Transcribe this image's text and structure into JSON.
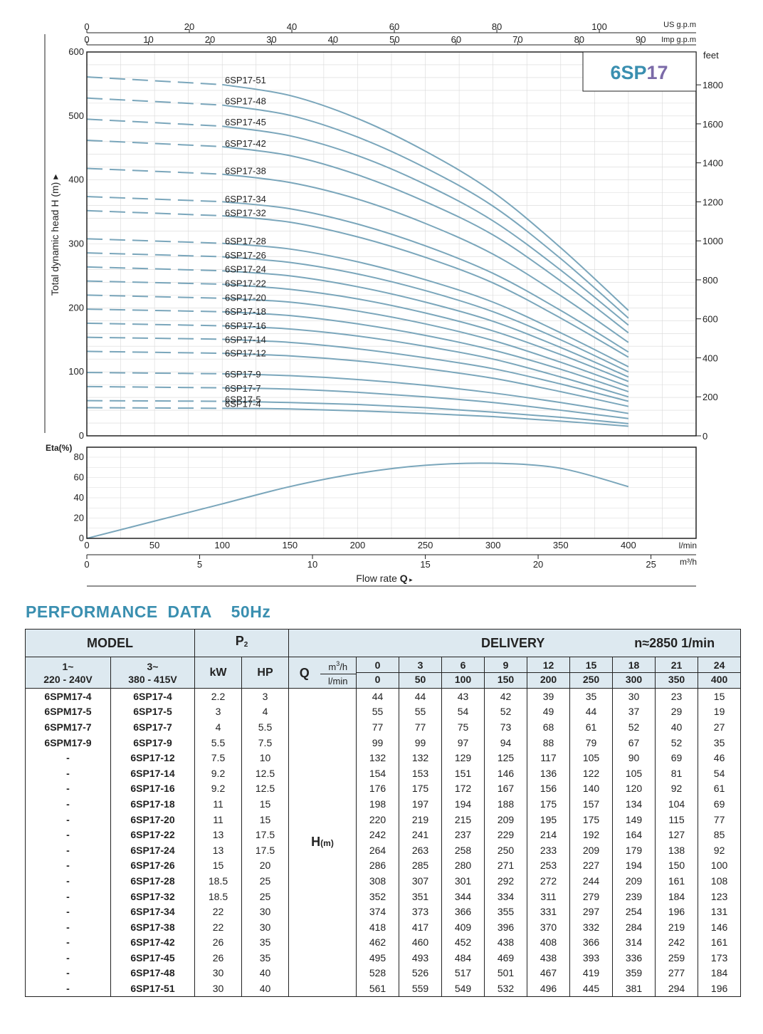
{
  "chart_data": [
    {
      "type": "line",
      "title": "6SP17",
      "ylabel": "Total dynamic head H (m)",
      "ylim": [
        0,
        600
      ],
      "yticks": [
        0,
        100,
        200,
        300,
        400,
        500,
        600
      ],
      "right_axis": {
        "label": "feet",
        "ticks": [
          0,
          200,
          400,
          600,
          800,
          1000,
          1200,
          1400,
          1600,
          1800
        ]
      },
      "top_axes": [
        {
          "label": "US g.p.m",
          "ticks": [
            0,
            20,
            40,
            60,
            80,
            100
          ]
        },
        {
          "label": "Imp g.p.m",
          "ticks": [
            0,
            10,
            20,
            30,
            40,
            50,
            60,
            70,
            80,
            90
          ]
        }
      ],
      "x": [
        0,
        50,
        100,
        150,
        200,
        250,
        300,
        350,
        400
      ],
      "xlim": [
        0,
        450
      ],
      "shutoff_dashed": true,
      "grid": true,
      "series": [
        {
          "name": "6SP17-51",
          "values": [
            561,
            559,
            549,
            532,
            496,
            445,
            381,
            294,
            196
          ]
        },
        {
          "name": "6SP17-48",
          "values": [
            528,
            526,
            517,
            501,
            467,
            419,
            359,
            277,
            184
          ]
        },
        {
          "name": "6SP17-45",
          "values": [
            495,
            493,
            484,
            469,
            438,
            393,
            336,
            259,
            173
          ]
        },
        {
          "name": "6SP17-42",
          "values": [
            462,
            460,
            452,
            438,
            408,
            366,
            314,
            242,
            161
          ]
        },
        {
          "name": "6SP17-38",
          "values": [
            418,
            417,
            409,
            396,
            370,
            332,
            284,
            219,
            146
          ]
        },
        {
          "name": "6SP17-34",
          "values": [
            374,
            373,
            366,
            355,
            331,
            297,
            254,
            196,
            131
          ]
        },
        {
          "name": "6SP17-32",
          "values": [
            352,
            351,
            344,
            334,
            311,
            279,
            239,
            184,
            123
          ]
        },
        {
          "name": "6SP17-28",
          "values": [
            308,
            307,
            301,
            292,
            272,
            244,
            209,
            161,
            108
          ]
        },
        {
          "name": "6SP17-26",
          "values": [
            286,
            285,
            280,
            271,
            253,
            227,
            194,
            150,
            100
          ]
        },
        {
          "name": "6SP17-24",
          "values": [
            264,
            263,
            258,
            250,
            233,
            209,
            179,
            138,
            92
          ]
        },
        {
          "name": "6SP17-22",
          "values": [
            242,
            241,
            237,
            229,
            214,
            192,
            164,
            127,
            85
          ]
        },
        {
          "name": "6SP17-20",
          "values": [
            220,
            219,
            215,
            209,
            195,
            175,
            149,
            115,
            77
          ]
        },
        {
          "name": "6SP17-18",
          "values": [
            198,
            197,
            194,
            188,
            175,
            157,
            134,
            104,
            69
          ]
        },
        {
          "name": "6SP17-16",
          "values": [
            176,
            175,
            172,
            167,
            156,
            140,
            120,
            92,
            61
          ]
        },
        {
          "name": "6SP17-14",
          "values": [
            154,
            153,
            151,
            146,
            136,
            122,
            105,
            81,
            54
          ]
        },
        {
          "name": "6SP17-12",
          "values": [
            132,
            132,
            129,
            125,
            117,
            105,
            90,
            69,
            46
          ]
        },
        {
          "name": "6SP17-9",
          "values": [
            99,
            99,
            97,
            94,
            88,
            79,
            67,
            52,
            35
          ]
        },
        {
          "name": "6SP17-7",
          "values": [
            77,
            77,
            75,
            73,
            68,
            61,
            52,
            40,
            27
          ]
        },
        {
          "name": "6SP17-5",
          "values": [
            55,
            55,
            54,
            52,
            49,
            44,
            37,
            29,
            19
          ]
        },
        {
          "name": "6SP17-4",
          "values": [
            44,
            44,
            43,
            42,
            39,
            35,
            30,
            23,
            15
          ]
        }
      ]
    },
    {
      "type": "line",
      "ylabel": "Eta(%)",
      "ylim": [
        0,
        80
      ],
      "yticks": [
        0,
        20,
        40,
        60,
        80
      ],
      "xlabel": "Flow rate Q",
      "xlim": [
        0,
        450
      ],
      "xticks_lmin": [
        0,
        50,
        100,
        150,
        200,
        250,
        300,
        350,
        400
      ],
      "xunit_lmin": "l/min",
      "xticks_m3h": [
        0,
        5,
        10,
        15,
        20,
        25
      ],
      "xunit_m3h": "m³/h",
      "series": [
        {
          "x": [
            0,
            50,
            100,
            150,
            200,
            250,
            300,
            350,
            400
          ],
          "values": [
            0,
            17,
            34,
            51,
            64,
            72,
            74,
            69,
            51
          ]
        }
      ]
    }
  ],
  "labels": {
    "main_title": "6SP17",
    "y_axis_label": "Total dynamic head H (m)",
    "y_axis_arrow": "▸",
    "feet_unit": "feet",
    "us_gpm_unit": "US g.p.m",
    "imp_gpm_unit": "Imp g.p.m",
    "eta_label": "Eta(%)",
    "lmin_unit": "l/min",
    "m3h_unit": "m³/h",
    "flow_rate_label": "Flow rate",
    "flow_rate_symbol": "Q",
    "flow_rate_arrow": "▸"
  },
  "section_title": "PERFORMANCE  DATA    50Hz",
  "table": {
    "model_header": "MODEL",
    "p2_header": "P",
    "p2_sub": "2",
    "delivery_header": "DELIVERY",
    "speed_header": "n≈2850 1/min",
    "single_phase": "1~",
    "single_phase_voltage": "220 - 240V",
    "three_phase": "3~",
    "three_phase_voltage": "380 - 415V",
    "kw_header": "kW",
    "hp_header": "HP",
    "q_symbol": "Q",
    "q_unit_m3h_base": "m",
    "q_unit_m3h_sup": "3",
    "q_unit_m3h_tail": "/h",
    "q_unit_lmin": "l/min",
    "h_label": "H",
    "h_unit": "(m)",
    "q_m3h": [
      "0",
      "3",
      "6",
      "9",
      "12",
      "15",
      "18",
      "21",
      "24"
    ],
    "q_lmin": [
      "0",
      "50",
      "100",
      "150",
      "200",
      "250",
      "300",
      "350",
      "400"
    ],
    "rows": [
      {
        "m1": "6SPM17-4",
        "m3": "6SP17-4",
        "kw": "2.2",
        "hp": "3",
        "h": [
          "44",
          "44",
          "43",
          "42",
          "39",
          "35",
          "30",
          "23",
          "15"
        ]
      },
      {
        "m1": "6SPM17-5",
        "m3": "6SP17-5",
        "kw": "3",
        "hp": "4",
        "h": [
          "55",
          "55",
          "54",
          "52",
          "49",
          "44",
          "37",
          "29",
          "19"
        ]
      },
      {
        "m1": "6SPM17-7",
        "m3": "6SP17-7",
        "kw": "4",
        "hp": "5.5",
        "h": [
          "77",
          "77",
          "75",
          "73",
          "68",
          "61",
          "52",
          "40",
          "27"
        ]
      },
      {
        "m1": "6SPM17-9",
        "m3": "6SP17-9",
        "kw": "5.5",
        "hp": "7.5",
        "h": [
          "99",
          "99",
          "97",
          "94",
          "88",
          "79",
          "67",
          "52",
          "35"
        ]
      },
      {
        "m1": "-",
        "m3": "6SP17-12",
        "kw": "7.5",
        "hp": "10",
        "h": [
          "132",
          "132",
          "129",
          "125",
          "117",
          "105",
          "90",
          "69",
          "46"
        ]
      },
      {
        "m1": "-",
        "m3": "6SP17-14",
        "kw": "9.2",
        "hp": "12.5",
        "h": [
          "154",
          "153",
          "151",
          "146",
          "136",
          "122",
          "105",
          "81",
          "54"
        ]
      },
      {
        "m1": "-",
        "m3": "6SP17-16",
        "kw": "9.2",
        "hp": "12.5",
        "h": [
          "176",
          "175",
          "172",
          "167",
          "156",
          "140",
          "120",
          "92",
          "61"
        ]
      },
      {
        "m1": "-",
        "m3": "6SP17-18",
        "kw": "11",
        "hp": "15",
        "h": [
          "198",
          "197",
          "194",
          "188",
          "175",
          "157",
          "134",
          "104",
          "69"
        ]
      },
      {
        "m1": "-",
        "m3": "6SP17-20",
        "kw": "11",
        "hp": "15",
        "h": [
          "220",
          "219",
          "215",
          "209",
          "195",
          "175",
          "149",
          "115",
          "77"
        ]
      },
      {
        "m1": "-",
        "m3": "6SP17-22",
        "kw": "13",
        "hp": "17.5",
        "h": [
          "242",
          "241",
          "237",
          "229",
          "214",
          "192",
          "164",
          "127",
          "85"
        ]
      },
      {
        "m1": "-",
        "m3": "6SP17-24",
        "kw": "13",
        "hp": "17.5",
        "h": [
          "264",
          "263",
          "258",
          "250",
          "233",
          "209",
          "179",
          "138",
          "92"
        ]
      },
      {
        "m1": "-",
        "m3": "6SP17-26",
        "kw": "15",
        "hp": "20",
        "h": [
          "286",
          "285",
          "280",
          "271",
          "253",
          "227",
          "194",
          "150",
          "100"
        ]
      },
      {
        "m1": "-",
        "m3": "6SP17-28",
        "kw": "18.5",
        "hp": "25",
        "h": [
          "308",
          "307",
          "301",
          "292",
          "272",
          "244",
          "209",
          "161",
          "108"
        ]
      },
      {
        "m1": "-",
        "m3": "6SP17-32",
        "kw": "18.5",
        "hp": "25",
        "h": [
          "352",
          "351",
          "344",
          "334",
          "311",
          "279",
          "239",
          "184",
          "123"
        ]
      },
      {
        "m1": "-",
        "m3": "6SP17-34",
        "kw": "22",
        "hp": "30",
        "h": [
          "374",
          "373",
          "366",
          "355",
          "331",
          "297",
          "254",
          "196",
          "131"
        ]
      },
      {
        "m1": "-",
        "m3": "6SP17-38",
        "kw": "22",
        "hp": "30",
        "h": [
          "418",
          "417",
          "409",
          "396",
          "370",
          "332",
          "284",
          "219",
          "146"
        ]
      },
      {
        "m1": "-",
        "m3": "6SP17-42",
        "kw": "26",
        "hp": "35",
        "h": [
          "462",
          "460",
          "452",
          "438",
          "408",
          "366",
          "314",
          "242",
          "161"
        ]
      },
      {
        "m1": "-",
        "m3": "6SP17-45",
        "kw": "26",
        "hp": "35",
        "h": [
          "495",
          "493",
          "484",
          "469",
          "438",
          "393",
          "336",
          "259",
          "173"
        ]
      },
      {
        "m1": "-",
        "m3": "6SP17-48",
        "kw": "30",
        "hp": "40",
        "h": [
          "528",
          "526",
          "517",
          "501",
          "467",
          "419",
          "359",
          "277",
          "184"
        ]
      },
      {
        "m1": "-",
        "m3": "6SP17-51",
        "kw": "30",
        "hp": "40",
        "h": [
          "561",
          "559",
          "549",
          "532",
          "496",
          "445",
          "381",
          "294",
          "196"
        ]
      }
    ]
  },
  "colors": {
    "curve": "#7aa6bb",
    "title_6sp": "#3a8fb0",
    "title_17": "#7b6aa8",
    "section_title": "#3a8fb0",
    "header_bg": "#dde9f0",
    "grid": "#d8d8d8"
  }
}
